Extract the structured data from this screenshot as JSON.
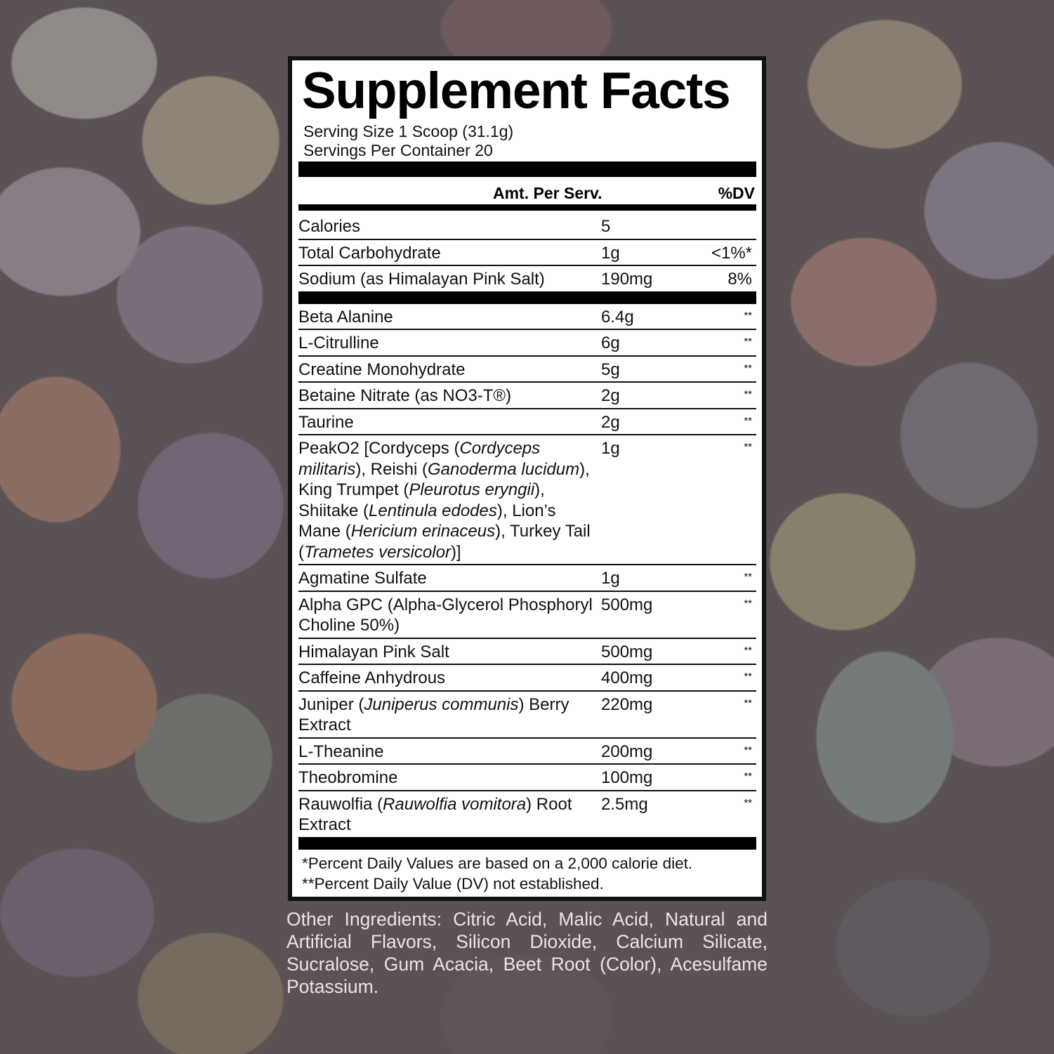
{
  "title": "Supplement Facts",
  "serving_size": "Serving Size 1 Scoop (31.1g)",
  "servings_per_container": "Servings Per Container 20",
  "header": {
    "amount": "Amt. Per Serv.",
    "dv": "%DV"
  },
  "group1": [
    {
      "name": [
        {
          "t": "Calories"
        }
      ],
      "amount": "5",
      "dv": ""
    },
    {
      "name": [
        {
          "t": "Total Carbohydrate"
        }
      ],
      "amount": "1g",
      "dv": "<1%*"
    },
    {
      "name": [
        {
          "t": "Sodium (as Himalayan Pink Salt)"
        }
      ],
      "amount": "190mg",
      "dv": "8%"
    }
  ],
  "group2": [
    {
      "name": [
        {
          "t": "Beta Alanine"
        }
      ],
      "amount": "6.4g",
      "dv": "**"
    },
    {
      "name": [
        {
          "t": "L-Citrulline"
        }
      ],
      "amount": "6g",
      "dv": "**"
    },
    {
      "name": [
        {
          "t": "Creatine Monohydrate"
        }
      ],
      "amount": "5g",
      "dv": "**"
    },
    {
      "name": [
        {
          "t": "Betaine Nitrate (as NO3-T®)"
        }
      ],
      "amount": "2g",
      "dv": "**"
    },
    {
      "name": [
        {
          "t": "Taurine"
        }
      ],
      "amount": "2g",
      "dv": "**"
    },
    {
      "name": [
        {
          "t": "PeakO2 [Cordyceps ("
        },
        {
          "t": "Cordyceps militaris",
          "i": true
        },
        {
          "t": "), Reishi ("
        },
        {
          "t": "Ganoderma lucidum",
          "i": true
        },
        {
          "t": "), King Trumpet ("
        },
        {
          "t": "Pleurotus eryngii",
          "i": true
        },
        {
          "t": "), Shiitake ("
        },
        {
          "t": "Lentinula edodes",
          "i": true
        },
        {
          "t": "), Lion’s Mane ("
        },
        {
          "t": "Hericium erinaceus",
          "i": true
        },
        {
          "t": "), Turkey Tail ("
        },
        {
          "t": "Trametes versicolor",
          "i": true
        },
        {
          "t": ")]"
        }
      ],
      "amount": "1g",
      "dv": "**"
    },
    {
      "name": [
        {
          "t": "Agmatine Sulfate"
        }
      ],
      "amount": "1g",
      "dv": "**"
    },
    {
      "name": [
        {
          "t": "Alpha GPC (Alpha-Glycerol Phosphoryl Choline 50%)"
        }
      ],
      "amount": "500mg",
      "dv": "**"
    },
    {
      "name": [
        {
          "t": "Himalayan Pink Salt"
        }
      ],
      "amount": "500mg",
      "dv": "**"
    },
    {
      "name": [
        {
          "t": "Caffeine Anhydrous"
        }
      ],
      "amount": "400mg",
      "dv": "**"
    },
    {
      "name": [
        {
          "t": "Juniper ("
        },
        {
          "t": "Juniperus communis",
          "i": true
        },
        {
          "t": ") Berry Extract"
        }
      ],
      "amount": "220mg",
      "dv": "**"
    },
    {
      "name": [
        {
          "t": "L-Theanine"
        }
      ],
      "amount": "200mg",
      "dv": "**"
    },
    {
      "name": [
        {
          "t": "Theobromine"
        }
      ],
      "amount": "100mg",
      "dv": "**"
    },
    {
      "name": [
        {
          "t": "Rauwolfia ("
        },
        {
          "t": "Rauwolfia vomitora",
          "i": true
        },
        {
          "t": ") Root Extract"
        }
      ],
      "amount": "2.5mg",
      "dv": "**"
    }
  ],
  "footnotes": [
    "*Percent Daily Values are based on a 2,000 calorie diet.",
    "**Percent Daily Value (DV) not established."
  ],
  "other_ingredients": "Other Ingredients: Citric Acid, Malic Acid, Natural and Artificial Flavors, Silicon Dioxide, Calcium Silicate, Sucralose, Gum Acacia, Beet Root (Color), Acesulfame Potassium."
}
